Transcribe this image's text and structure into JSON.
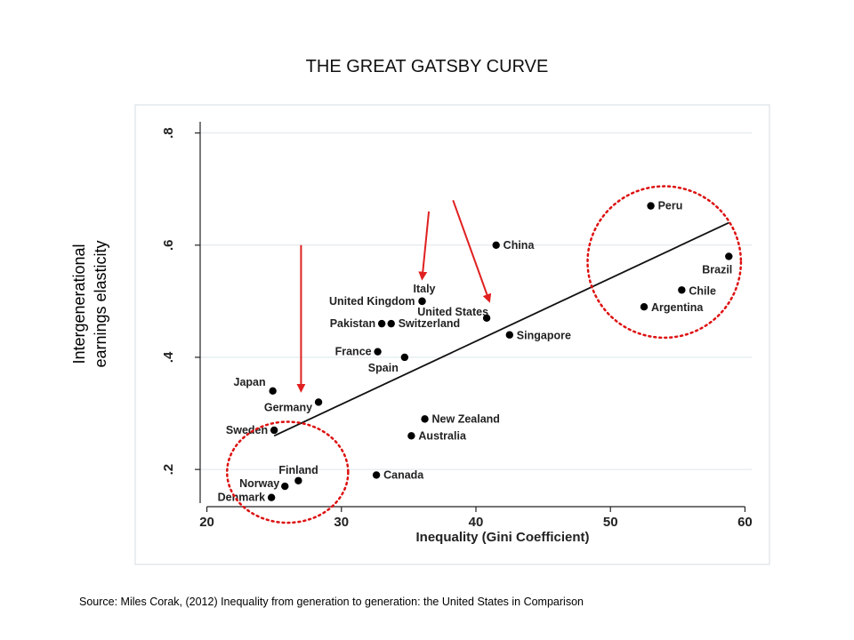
{
  "page": {
    "title": "THE GREAT GATSBY CURVE",
    "ylabel_line1": "Intergenerational",
    "ylabel_line2": "earnings elasticity",
    "source": "Source: Miles Corak, (2012) Inequality from generation to generation: the United States in Comparison"
  },
  "chart_data": {
    "type": "scatter",
    "xlabel": "Inequality (Gini Coefficient)",
    "ylabel": "Intergenerational earnings elasticity",
    "xlim": [
      19.5,
      60.5
    ],
    "ylim": [
      0.14,
      0.82
    ],
    "xticks": [
      20,
      30,
      40,
      50,
      60
    ],
    "xtick_labels": [
      "20",
      "30",
      "40",
      "50",
      "60"
    ],
    "yticks": [
      0.2,
      0.4,
      0.6,
      0.8
    ],
    "ytick_labels": [
      ".2",
      ".4",
      ".6",
      ".8"
    ],
    "grid": "horizontal",
    "points": [
      {
        "label": "Peru",
        "x": 53.0,
        "y": 0.67
      },
      {
        "label": "China",
        "x": 41.5,
        "y": 0.6
      },
      {
        "label": "Brazil",
        "x": 58.8,
        "y": 0.58
      },
      {
        "label": "Chile",
        "x": 55.3,
        "y": 0.52
      },
      {
        "label": "Italy",
        "x": 36.0,
        "y": 0.5
      },
      {
        "label": "United Kingdom",
        "x": 36.0,
        "y": 0.5
      },
      {
        "label": "Argentina",
        "x": 52.5,
        "y": 0.49
      },
      {
        "label": "United States",
        "x": 40.8,
        "y": 0.47
      },
      {
        "label": "Pakistan",
        "x": 33.0,
        "y": 0.46
      },
      {
        "label": "Switzerland",
        "x": 33.7,
        "y": 0.46
      },
      {
        "label": "Singapore",
        "x": 42.5,
        "y": 0.44
      },
      {
        "label": "France",
        "x": 32.7,
        "y": 0.41
      },
      {
        "label": "Spain",
        "x": 34.7,
        "y": 0.4
      },
      {
        "label": "Japan",
        "x": 24.9,
        "y": 0.34
      },
      {
        "label": "Germany",
        "x": 28.3,
        "y": 0.32
      },
      {
        "label": "New Zealand",
        "x": 36.2,
        "y": 0.29
      },
      {
        "label": "Sweden",
        "x": 25.0,
        "y": 0.27
      },
      {
        "label": "Australia",
        "x": 35.2,
        "y": 0.26
      },
      {
        "label": "Canada",
        "x": 32.6,
        "y": 0.19
      },
      {
        "label": "Finland",
        "x": 26.8,
        "y": 0.18
      },
      {
        "label": "Norway",
        "x": 25.8,
        "y": 0.17
      },
      {
        "label": "Denmark",
        "x": 24.8,
        "y": 0.15
      }
    ],
    "fit_line": {
      "x": [
        25.0,
        58.8
      ],
      "y": [
        0.26,
        0.64
      ]
    },
    "annotations": {
      "arrow_color": "#e02020",
      "circle_color": "#dd1111",
      "arrows": [
        {
          "from": [
            27.0,
            0.6
          ],
          "to": [
            27.0,
            0.34
          ]
        },
        {
          "from": [
            36.5,
            0.66
          ],
          "to": [
            36.0,
            0.54
          ]
        },
        {
          "from": [
            38.3,
            0.68
          ],
          "to": [
            41.0,
            0.5
          ]
        }
      ],
      "circles": [
        {
          "cx": 26.0,
          "cy": 0.195,
          "rx": 4.5,
          "ry": 0.09
        },
        {
          "cx": 54.0,
          "cy": 0.57,
          "rx": 5.7,
          "ry": 0.135
        }
      ]
    },
    "colors": {
      "point": "#000000",
      "fit_line": "#111111",
      "grid": "#dde6ea",
      "frame": "#d5dde0"
    }
  }
}
